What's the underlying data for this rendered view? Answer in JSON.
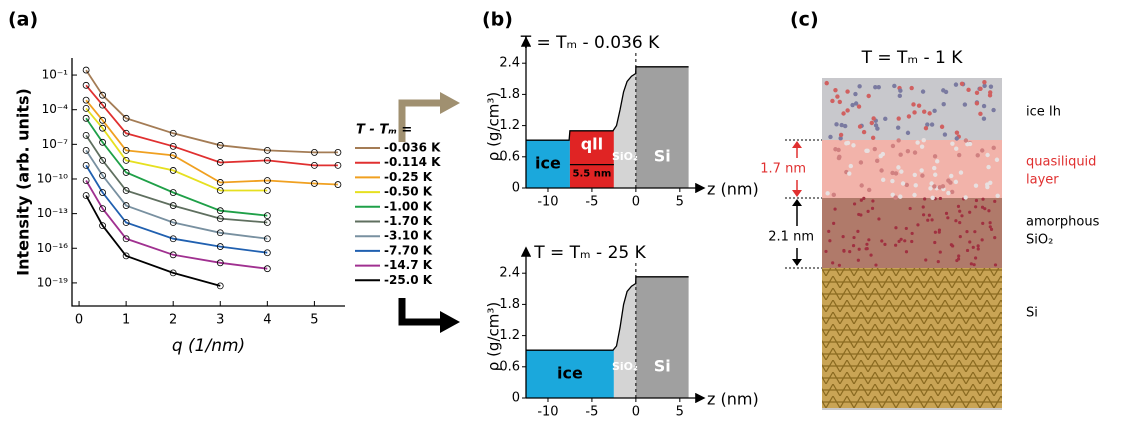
{
  "panel_labels": [
    "(a)",
    "(b)",
    "(c)"
  ],
  "chart_data": [
    {
      "type": "line",
      "log_y": true,
      "xlabel": "q (1/nm)",
      "ylabel": "Intensity (arb. units)",
      "legend_title": "T - Tₘ =",
      "xlim": [
        -0.15,
        5.65
      ],
      "xticks": [
        0,
        1,
        2,
        3,
        4,
        5
      ],
      "ylim": [
        1e-21,
        3
      ],
      "yticks": [
        {
          "value": 0.1,
          "label": "10⁻¹"
        },
        {
          "value": 0.0001,
          "label": "10⁻⁴"
        },
        {
          "value": 1e-07,
          "label": "10⁻⁷"
        },
        {
          "value": 1e-10,
          "label": "10⁻¹⁰"
        },
        {
          "value": 1e-13,
          "label": "10⁻¹³"
        },
        {
          "value": 1e-16,
          "label": "10⁻¹⁶"
        },
        {
          "value": 1e-19,
          "label": "10⁻¹⁹"
        }
      ],
      "x": [
        0.15,
        0.5,
        1,
        2,
        3,
        4,
        5,
        5.5
      ],
      "series": [
        {
          "name": "-0.036 K",
          "color": "#a47c55",
          "values": [
            0.27,
            0.0018,
            1.8e-05,
            9.1e-07,
            8.2e-08,
            3e-08,
            2e-08,
            2e-08
          ]
        },
        {
          "name": "-0.114 K",
          "color": "#e03030",
          "values": [
            0.013,
            0.00025,
            9.1e-07,
            6.7e-08,
            2.7e-09,
            4.1e-09,
            1.5e-09,
            1.5e-09
          ]
        },
        {
          "name": "-0.25 K",
          "color": "#f0a020",
          "values": [
            0.00067,
            1.2e-05,
            3e-08,
            1.1e-08,
            5e-11,
            7.4e-11,
            4.1e-11,
            3.3e-11
          ]
        },
        {
          "name": "-0.50 K",
          "color": "#e6e020",
          "values": [
            0.00013,
            2.5e-06,
            4.1e-09,
            5.5e-10,
            1e-11,
            1e-11,
            null,
            null
          ]
        },
        {
          "name": "-1.00 K",
          "color": "#1fa048",
          "values": [
            1.8e-05,
            1.5e-07,
            3.7e-10,
            6.7e-12,
            1.8e-13,
            6.7e-14,
            null,
            null
          ]
        },
        {
          "name": "-1.70 K",
          "color": "#5f6f5f",
          "values": [
            6e-07,
            4.1e-09,
            1e-11,
            5e-13,
            3.7e-14,
            1.7e-14,
            null,
            null
          ]
        },
        {
          "name": "-3.10 K",
          "color": "#7890a0",
          "values": [
            3e-08,
            2e-10,
            5e-13,
            1.7e-14,
            2.2e-15,
            6.7e-16,
            null,
            null
          ]
        },
        {
          "name": "-7.70 K",
          "color": "#2060b0",
          "values": [
            1.5e-09,
            6.7e-12,
            1.7e-14,
            6.7e-16,
            1.4e-16,
            4.1e-17,
            null,
            null
          ]
        },
        {
          "name": "-14.7 K",
          "color": "#a03090",
          "values": [
            7.4e-11,
            2.7e-13,
            6.7e-16,
            2.7e-17,
            5.5e-18,
            1.7e-18,
            null,
            null
          ]
        },
        {
          "name": "-25.0 K",
          "color": "#000000",
          "values": [
            3.7e-12,
            9.1e-15,
            2.2e-17,
            7.4e-19,
            5.5e-20,
            null,
            null,
            null
          ]
        }
      ]
    },
    {
      "type": "area",
      "title": "T = Tₘ - 0.036 K",
      "xlabel": "z (nm)",
      "ylabel": "ρ (g/cm³)",
      "xlim": [
        -12.5,
        6.5
      ],
      "xticks": [
        -10,
        -5,
        0,
        5
      ],
      "ylim": [
        0,
        2.75
      ],
      "yticks": [
        0,
        0.6,
        1.2,
        1.8,
        2.4
      ],
      "vline": 0,
      "x": [
        -12.5,
        -7.6,
        -7.5,
        -2.6,
        -2.2,
        -1.8,
        -1.4,
        -1,
        -0.5,
        -0.02,
        0,
        6
      ],
      "values": [
        0.92,
        0.92,
        1.1,
        1.1,
        1.2,
        1.5,
        1.85,
        2.05,
        2.15,
        2.2,
        2.33,
        2.33
      ],
      "regions": [
        {
          "label": "ice",
          "from": -12.5,
          "to": -7.5,
          "color": "#1ba8dc"
        },
        {
          "label": "qll",
          "from": -7.5,
          "to": -2.5,
          "color": "#e02424"
        },
        {
          "label": "SiO₂",
          "from": -2.5,
          "to": 0,
          "color": "#d4d4d4"
        },
        {
          "label": "Si",
          "from": 0,
          "to": 6,
          "color": "#a0a0a0"
        }
      ],
      "annotation": "5.5 nm"
    },
    {
      "type": "area",
      "title": "T = Tₘ - 25 K",
      "xlabel": "z (nm)",
      "ylabel": "ρ (g/cm³)",
      "xlim": [
        -12.5,
        6.5
      ],
      "xticks": [
        -10,
        -5,
        0,
        5
      ],
      "ylim": [
        0,
        2.75
      ],
      "yticks": [
        0,
        0.6,
        1.2,
        1.8,
        2.4
      ],
      "vline": 0,
      "x": [
        -12.5,
        -2.6,
        -2.2,
        -1.8,
        -1.4,
        -1,
        -0.5,
        -0.02,
        0,
        6
      ],
      "values": [
        0.92,
        0.92,
        1.0,
        1.35,
        1.8,
        2.05,
        2.15,
        2.2,
        2.33,
        2.33
      ],
      "regions": [
        {
          "label": "ice",
          "from": -12.5,
          "to": -2.5,
          "color": "#1ba8dc"
        },
        {
          "label": "SiO₂",
          "from": -2.5,
          "to": 0,
          "color": "#d4d4d4"
        },
        {
          "label": "Si",
          "from": 0,
          "to": 6,
          "color": "#a0a0a0"
        }
      ]
    }
  ],
  "panel_c": {
    "title": "T = Tₘ - 1 K",
    "layers": [
      "ice Ih",
      "quasiliquid",
      "layer",
      "amorphous",
      "SiO₂",
      "Si"
    ],
    "thickness": [
      "1.7 nm",
      "2.1 nm"
    ]
  }
}
